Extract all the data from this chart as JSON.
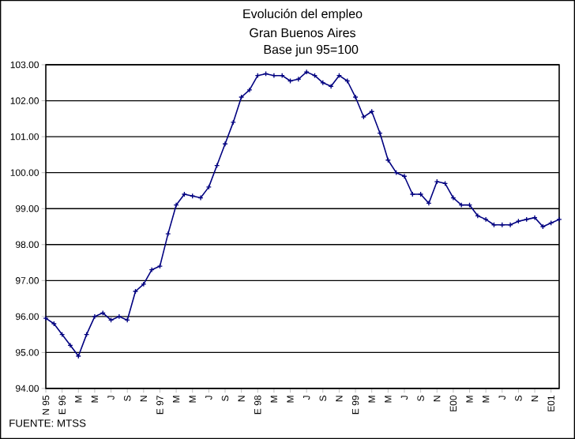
{
  "chart_data": {
    "type": "line",
    "title": "Evolución del empleo",
    "subtitle": "Gran Buenos Aires",
    "annotations": [
      "Base jun 95=100",
      "FUENTE: MTSS"
    ],
    "categories": [
      "N 95",
      null,
      "E 96",
      null,
      "M",
      null,
      "M",
      null,
      "J",
      null,
      "S",
      null,
      "N",
      null,
      "E 97",
      null,
      "M",
      null,
      "M",
      null,
      "J",
      null,
      "S",
      null,
      "N",
      null,
      "E 98",
      null,
      "M",
      null,
      "M",
      null,
      "J",
      null,
      "S",
      null,
      "N",
      null,
      "E 99",
      null,
      "M",
      null,
      "M",
      null,
      "J",
      null,
      "S",
      null,
      "N",
      null,
      "E00",
      null,
      "M",
      null,
      "M",
      null,
      "J",
      null,
      "S",
      null,
      "N",
      null,
      "E01",
      null
    ],
    "series": [
      {
        "color": "#000080",
        "values": [
          95.95,
          95.8,
          95.5,
          95.2,
          94.9,
          95.5,
          96.0,
          96.1,
          95.9,
          96.0,
          95.9,
          96.7,
          96.9,
          97.3,
          97.4,
          98.3,
          99.1,
          99.4,
          99.35,
          99.3,
          99.6,
          100.2,
          100.8,
          101.4,
          102.1,
          102.3,
          102.7,
          102.75,
          102.7,
          102.7,
          102.55,
          102.6,
          102.8,
          102.7,
          102.5,
          102.4,
          102.7,
          102.55,
          102.1,
          101.55,
          101.7,
          101.1,
          100.35,
          100.0,
          99.9,
          99.4,
          99.4,
          99.15,
          99.75,
          99.7,
          99.3,
          99.1,
          99.1,
          98.8,
          98.7,
          98.55,
          98.55,
          98.55,
          98.65,
          98.7,
          98.75,
          98.5,
          98.6,
          98.7
        ]
      }
    ],
    "ylim": [
      94,
      103
    ],
    "yticks": [
      {
        "value": 94,
        "label": "94.00"
      },
      {
        "value": 95,
        "label": "95.00"
      },
      {
        "value": 96,
        "label": "96.00"
      },
      {
        "value": 97,
        "label": "97.00"
      },
      {
        "value": 98,
        "label": "98.00"
      },
      {
        "value": 99,
        "label": "99.00"
      },
      {
        "value": 100,
        "label": "100.00"
      },
      {
        "value": 101,
        "label": "101.00"
      },
      {
        "value": 102,
        "label": "102.00"
      },
      {
        "value": 103,
        "label": "103.00"
      }
    ],
    "grid": "y",
    "legend": false,
    "marker": "cross",
    "line_style": "solid"
  }
}
